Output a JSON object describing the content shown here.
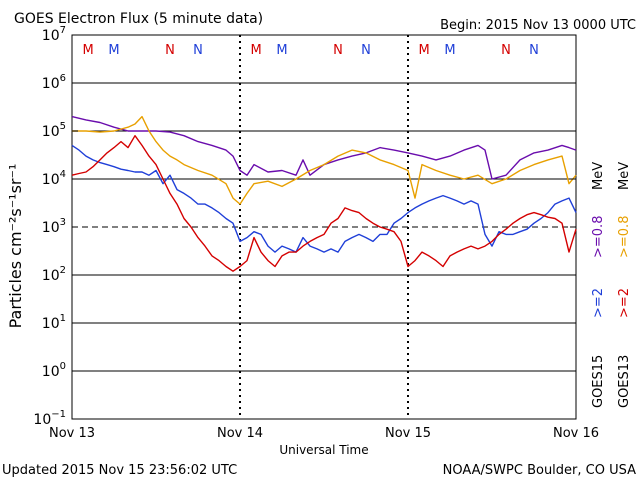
{
  "chart_data": {
    "type": "line",
    "title": "GOES Electron Flux (5 minute data)",
    "begin_label": "Begin: 2015 Nov 13 0000 UTC",
    "xlabel": "Universal Time",
    "ylabel": "Particles cm⁻²s⁻¹sr⁻¹",
    "updated": "Updated 2015 Nov 15 23:56:02 UTC",
    "credit": "NOAA/SWPC Boulder, CO USA",
    "x_ticks": [
      "Nov 13",
      "Nov 14",
      "Nov 15",
      "Nov 16"
    ],
    "xlim_hours": [
      0,
      72
    ],
    "y_scale": "log",
    "ylim": [
      0.1,
      10000000
    ],
    "y_ticks": [
      {
        "base": "10",
        "exp": "7"
      },
      {
        "base": "10",
        "exp": "6"
      },
      {
        "base": "10",
        "exp": "5"
      },
      {
        "base": "10",
        "exp": "4"
      },
      {
        "base": "10",
        "exp": "3"
      },
      {
        "base": "10",
        "exp": "2"
      },
      {
        "base": "10",
        "exp": "1"
      },
      {
        "base": "10",
        "exp": "0"
      },
      {
        "base": "10",
        "exp": "−1"
      }
    ],
    "threshold": 1000,
    "markers": [
      {
        "label": "M",
        "hour": 2.3,
        "color": "#d40000"
      },
      {
        "label": "M",
        "hour": 6.0,
        "color": "#1f3fd8"
      },
      {
        "label": "N",
        "hour": 14.0,
        "color": "#d40000"
      },
      {
        "label": "N",
        "hour": 18.0,
        "color": "#1f3fd8"
      },
      {
        "label": "M",
        "hour": 26.3,
        "color": "#d40000"
      },
      {
        "label": "M",
        "hour": 30.0,
        "color": "#1f3fd8"
      },
      {
        "label": "N",
        "hour": 38.0,
        "color": "#d40000"
      },
      {
        "label": "N",
        "hour": 42.0,
        "color": "#1f3fd8"
      },
      {
        "label": "M",
        "hour": 50.3,
        "color": "#d40000"
      },
      {
        "label": "M",
        "hour": 54.0,
        "color": "#1f3fd8"
      },
      {
        "label": "N",
        "hour": 62.0,
        "color": "#d40000"
      },
      {
        "label": "N",
        "hour": 66.0,
        "color": "#1f3fd8"
      }
    ],
    "legend_right": [
      {
        "text": "GOES15 >=2",
        "color": "#1f3fd8"
      },
      {
        "text": ">=0.8 MeV",
        "color": "#6a0dad"
      },
      {
        "text": "GOES13 >=2",
        "color": "#d40000"
      },
      {
        "text": ">=0.8 MeV",
        "color": "#e8a000"
      }
    ],
    "legend_sat": [
      "GOES15",
      "GOES13"
    ],
    "legend_gt2": [
      ">=2",
      ">=2"
    ],
    "legend_gt08": [
      ">=0.8",
      ">=0.8"
    ],
    "legend_mev": [
      "MeV",
      "MeV"
    ],
    "series": [
      {
        "name": "GOES15 >=2 MeV",
        "color": "#1f3fd8",
        "x": [
          0,
          1,
          2,
          3,
          4,
          5,
          6,
          7,
          8,
          9,
          10,
          11,
          12,
          13,
          14,
          15,
          16,
          17,
          18,
          19,
          20,
          21,
          22,
          23,
          24,
          25,
          26,
          27,
          28,
          29,
          30,
          31,
          32,
          33,
          34,
          35,
          36,
          37,
          38,
          39,
          40,
          41,
          42,
          43,
          44,
          45,
          46,
          47,
          48,
          49,
          50,
          51,
          52,
          53,
          54,
          55,
          56,
          57,
          58,
          59,
          60,
          61,
          62,
          63,
          64,
          65,
          66,
          67,
          68,
          69,
          70,
          71,
          72
        ],
        "y": [
          50000,
          40000,
          30000,
          25000,
          22000,
          20000,
          18000,
          16000,
          15000,
          14000,
          14000,
          12000,
          15000,
          8000,
          12000,
          6000,
          5000,
          4000,
          3000,
          3000,
          2500,
          2000,
          1500,
          1200,
          500,
          600,
          800,
          700,
          400,
          300,
          400,
          350,
          300,
          600,
          400,
          350,
          300,
          350,
          300,
          500,
          600,
          700,
          600,
          500,
          700,
          700,
          1200,
          1500,
          2000,
          2500,
          3000,
          3500,
          4000,
          4500,
          4000,
          3500,
          3000,
          3500,
          3000,
          700,
          400,
          800,
          700,
          700,
          800,
          900,
          1200,
          1500,
          2000,
          3000,
          3500,
          4000,
          2000
        ]
      },
      {
        "name": "GOES15 >=0.8 MeV",
        "color": "#6a0dad",
        "x": [
          0,
          2,
          4,
          6,
          8,
          10,
          12,
          14,
          16,
          18,
          20,
          22,
          23,
          24,
          25,
          26,
          28,
          30,
          32,
          33,
          34,
          36,
          38,
          40,
          42,
          44,
          46,
          48,
          50,
          52,
          54,
          56,
          58,
          59,
          60,
          62,
          64,
          66,
          68,
          70,
          71,
          72
        ],
        "y": [
          200000,
          170000,
          150000,
          120000,
          100000,
          100000,
          100000,
          95000,
          80000,
          60000,
          50000,
          40000,
          30000,
          15000,
          12000,
          20000,
          14000,
          15000,
          12000,
          25000,
          12000,
          20000,
          25000,
          30000,
          35000,
          45000,
          40000,
          35000,
          30000,
          25000,
          30000,
          40000,
          50000,
          40000,
          10000,
          12000,
          25000,
          35000,
          40000,
          50000,
          45000,
          40000
        ]
      },
      {
        "name": "GOES13 >=2 MeV",
        "color": "#d40000",
        "x": [
          0,
          1,
          2,
          3,
          4,
          5,
          6,
          7,
          8,
          9,
          10,
          11,
          12,
          13,
          14,
          15,
          16,
          17,
          18,
          19,
          20,
          21,
          22,
          23,
          24,
          25,
          26,
          27,
          28,
          29,
          30,
          31,
          32,
          33,
          34,
          35,
          36,
          37,
          38,
          39,
          40,
          41,
          42,
          43,
          44,
          45,
          46,
          47,
          48,
          49,
          50,
          51,
          52,
          53,
          54,
          55,
          56,
          57,
          58,
          59,
          60,
          61,
          62,
          63,
          64,
          65,
          66,
          67,
          68,
          69,
          70,
          71,
          72
        ],
        "y": [
          12000,
          13000,
          14000,
          18000,
          25000,
          35000,
          45000,
          60000,
          45000,
          80000,
          50000,
          30000,
          20000,
          10000,
          5000,
          3000,
          1500,
          1000,
          600,
          400,
          250,
          200,
          150,
          120,
          150,
          200,
          600,
          300,
          200,
          150,
          250,
          300,
          300,
          400,
          500,
          600,
          700,
          1200,
          1500,
          2500,
          2200,
          2000,
          1500,
          1200,
          1000,
          900,
          800,
          500,
          150,
          200,
          300,
          250,
          200,
          150,
          250,
          300,
          350,
          400,
          350,
          400,
          500,
          700,
          900,
          1200,
          1500,
          1800,
          2000,
          1800,
          1600,
          1500,
          1200,
          300,
          900
        ]
      },
      {
        "name": "GOES13 >=0.8 MeV",
        "color": "#e8a000",
        "x": [
          0,
          2,
          4,
          6,
          8,
          9,
          10,
          11,
          12,
          13,
          14,
          15,
          16,
          18,
          20,
          22,
          23,
          24,
          25,
          26,
          28,
          30,
          32,
          34,
          36,
          38,
          40,
          42,
          44,
          46,
          48,
          49,
          50,
          52,
          54,
          56,
          58,
          60,
          62,
          64,
          66,
          68,
          70,
          71,
          72
        ],
        "y": [
          100000,
          100000,
          95000,
          100000,
          120000,
          140000,
          200000,
          100000,
          60000,
          40000,
          30000,
          25000,
          20000,
          15000,
          12000,
          8000,
          4000,
          3000,
          5000,
          8000,
          9000,
          7000,
          10000,
          15000,
          20000,
          30000,
          40000,
          35000,
          25000,
          20000,
          15000,
          4000,
          20000,
          15000,
          12000,
          10000,
          12000,
          8000,
          10000,
          15000,
          20000,
          25000,
          30000,
          8000,
          12000
        ]
      }
    ]
  }
}
